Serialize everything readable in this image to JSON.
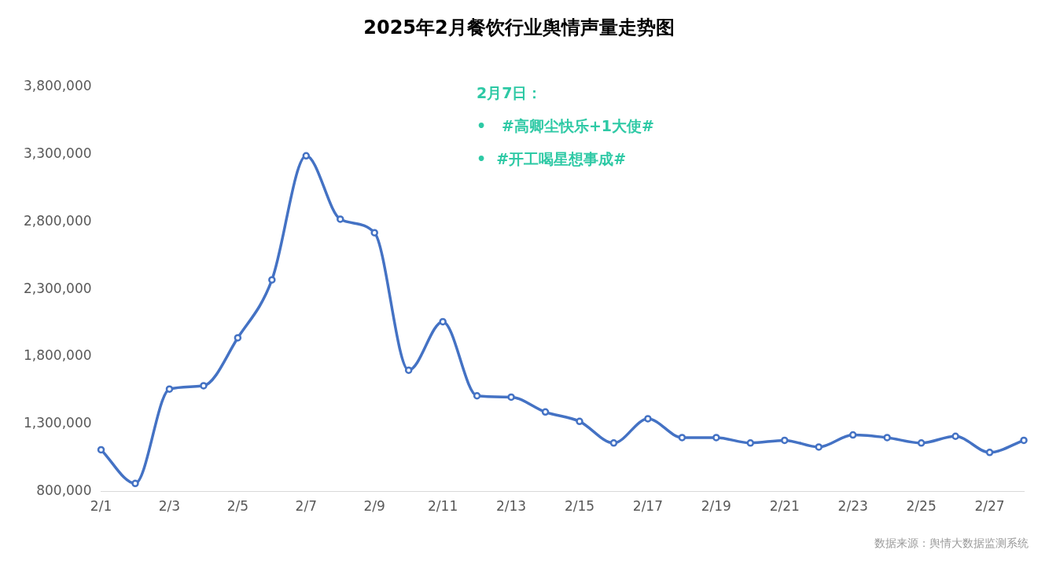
{
  "chart_data": {
    "type": "line",
    "title": "2025年2月餐饮行业舆情声量走势图",
    "categories": [
      "2/1",
      null,
      "2/3",
      null,
      "2/5",
      null,
      "2/7",
      null,
      "2/9",
      null,
      "2/11",
      null,
      "2/13",
      null,
      "2/15",
      null,
      "2/17",
      null,
      "2/19",
      null,
      "2/21",
      null,
      "2/23",
      null,
      "2/25",
      null,
      "2/27",
      null
    ],
    "series": [
      {
        "color": "#4472c4",
        "values": [
          1110000,
          860000,
          1560000,
          1585000,
          1940000,
          2370000,
          3290000,
          2820000,
          2720000,
          1700000,
          2060000,
          1510000,
          1500000,
          1390000,
          1320000,
          1160000,
          1340000,
          1200000,
          1200000,
          1160000,
          1180000,
          1130000,
          1220000,
          1200000,
          1160000,
          1210000,
          1090000,
          1180000
        ]
      }
    ],
    "ylim": [
      800000,
      3800000
    ],
    "yticks": [
      {
        "value": 800000,
        "label": "800,000"
      },
      {
        "value": 1300000,
        "label": "1,300,000"
      },
      {
        "value": 1800000,
        "label": "1,800,000"
      },
      {
        "value": 2300000,
        "label": "2,300,000"
      },
      {
        "value": 2800000,
        "label": "2,800,000"
      },
      {
        "value": 3300000,
        "label": "3,300,000"
      },
      {
        "value": 3800000,
        "label": "3,800,000"
      }
    ],
    "grid": false,
    "legend": false,
    "marker": "circle",
    "line_style": "solid",
    "annotations": [
      "2月7日：",
      "•   #高卿尘快乐+1大使#",
      "•  #开工喝星想事成#",
      "数据来源：舆情大数据监测系统"
    ]
  }
}
